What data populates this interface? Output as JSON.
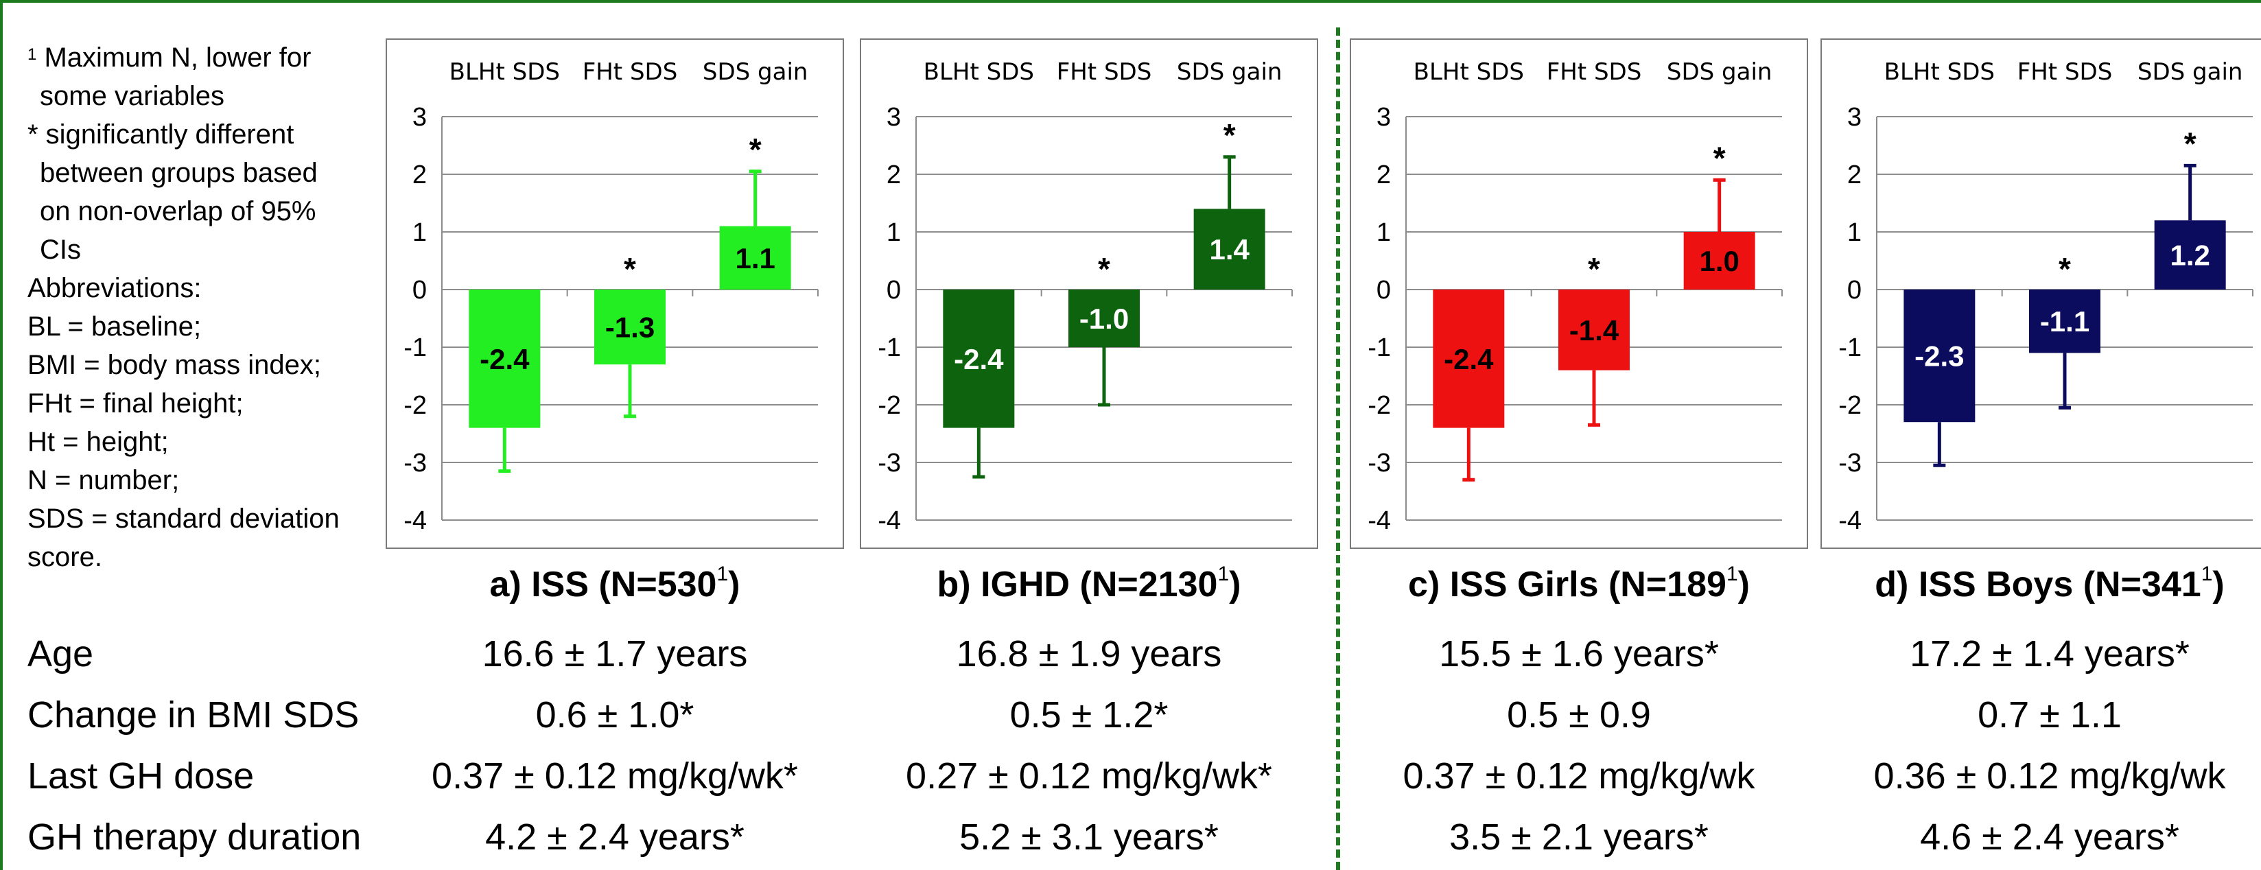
{
  "footnotes": {
    "line1": "Maximum N, lower for",
    "line1_sup": "1",
    "line2": "some variables",
    "line3": "* significantly different",
    "line4": "between groups based",
    "line5": "on non-overlap of 95%",
    "line6": "CIs",
    "line7": "Abbreviations:",
    "line8": "BL = baseline;",
    "line9": "BMI = body mass index;",
    "line10": "FHt = final height;",
    "line11": "Ht = height;",
    "line12": "N = number;",
    "line13": "SDS = standard deviation",
    "line14": "score."
  },
  "chart_data": [
    {
      "type": "bar",
      "title": "a) ISS (N=530",
      "title_sup": "1",
      "title_end": ")",
      "categories": [
        "BLHt SDS",
        "FHt SDS",
        "SDS gain"
      ],
      "values": [
        -2.4,
        -1.3,
        1.1
      ],
      "labels": [
        "-2.4",
        "-1.3",
        "1.1"
      ],
      "err_low": [
        -3.15,
        -2.2,
        null
      ],
      "err_high": [
        null,
        null,
        2.05
      ],
      "asterisk": [
        false,
        true,
        true
      ],
      "color": "#22ee22",
      "label_color": "#000000",
      "ylim": [
        -4,
        3
      ],
      "yticks": [
        "3",
        "2",
        "1",
        "0",
        "-1",
        "-2",
        "-3",
        "-4"
      ],
      "grid": true
    },
    {
      "type": "bar",
      "title": "b) IGHD (N=2130",
      "title_sup": "1",
      "title_end": ")",
      "categories": [
        "BLHt SDS",
        "FHt SDS",
        "SDS gain"
      ],
      "values": [
        -2.4,
        -1.0,
        1.4
      ],
      "labels": [
        "-2.4",
        "-1.0",
        "1.4"
      ],
      "err_low": [
        -3.25,
        -2.0,
        null
      ],
      "err_high": [
        null,
        null,
        2.3
      ],
      "asterisk": [
        false,
        true,
        true
      ],
      "color": "#0e640e",
      "label_color": "#ffffff",
      "ylim": [
        -4,
        3
      ],
      "yticks": [
        "3",
        "2",
        "1",
        "0",
        "-1",
        "-2",
        "-3",
        "-4"
      ],
      "grid": true
    },
    {
      "type": "bar",
      "title": "c) ISS Girls (N=189",
      "title_sup": "1",
      "title_end": ")",
      "categories": [
        "BLHt SDS",
        "FHt SDS",
        "SDS gain"
      ],
      "values": [
        -2.4,
        -1.4,
        1.0
      ],
      "labels": [
        "-2.4",
        "-1.4",
        "1.0"
      ],
      "err_low": [
        -3.3,
        -2.35,
        null
      ],
      "err_high": [
        null,
        null,
        1.9
      ],
      "asterisk": [
        false,
        true,
        true
      ],
      "color": "#ee1111",
      "label_color": "#000000",
      "ylim": [
        -4,
        3
      ],
      "yticks": [
        "3",
        "2",
        "1",
        "0",
        "-1",
        "-2",
        "-3",
        "-4"
      ],
      "grid": true
    },
    {
      "type": "bar",
      "title": "d) ISS Boys (N=341",
      "title_sup": "1",
      "title_end": ")",
      "categories": [
        "BLHt SDS",
        "FHt SDS",
        "SDS gain"
      ],
      "values": [
        -2.3,
        -1.1,
        1.2
      ],
      "labels": [
        "-2.3",
        "-1.1",
        "1.2"
      ],
      "err_low": [
        -3.05,
        -2.05,
        null
      ],
      "err_high": [
        null,
        null,
        2.15
      ],
      "asterisk": [
        false,
        true,
        true
      ],
      "color": "#0c0c5e",
      "label_color": "#ffffff",
      "ylim": [
        -4,
        3
      ],
      "yticks": [
        "3",
        "2",
        "1",
        "0",
        "-1",
        "-2",
        "-3",
        "-4"
      ],
      "grid": true
    }
  ],
  "table": {
    "row_labels": [
      "Age",
      "Change in BMI SDS",
      "Last GH dose",
      "GH therapy duration"
    ],
    "columns": [
      [
        "16.6 ± 1.7 years",
        "0.6 ± 1.0*",
        "0.37 ± 0.12 mg/kg/wk*",
        "4.2 ± 2.4 years*"
      ],
      [
        "16.8 ± 1.9 years",
        "0.5 ± 1.2*",
        "0.27 ± 0.12 mg/kg/wk*",
        "5.2 ± 3.1 years*"
      ],
      [
        "15.5 ± 1.6 years*",
        "0.5 ± 0.9",
        "0.37 ± 0.12 mg/kg/wk",
        "3.5 ± 2.1 years*"
      ],
      [
        "17.2 ± 1.4 years*",
        "0.7 ± 1.1",
        "0.36 ± 0.12 mg/kg/wk",
        "4.6 ± 2.4 years*"
      ]
    ]
  },
  "colors": {
    "frame": "#1e7a1e",
    "panel_border": "#7a7a7a",
    "grid": "#8c8c8c"
  }
}
